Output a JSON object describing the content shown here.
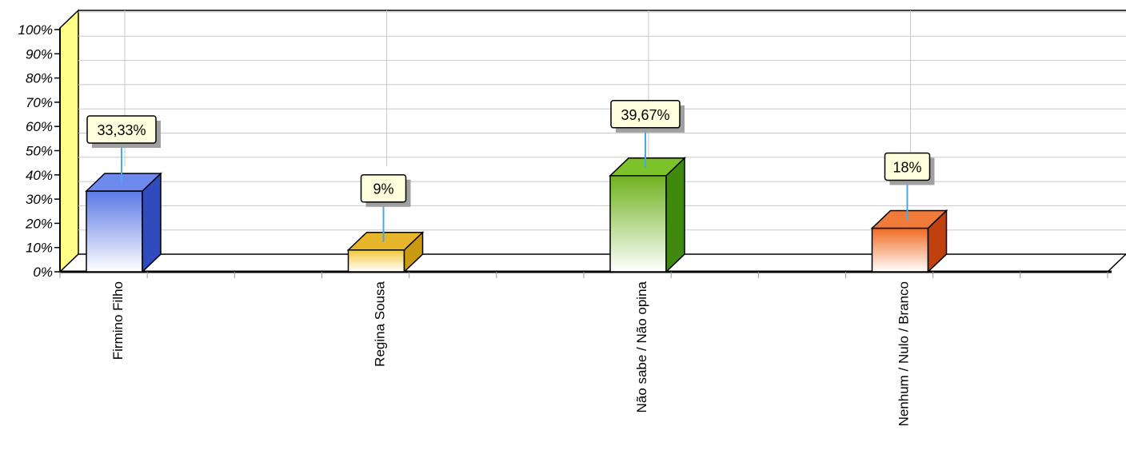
{
  "chart_data": {
    "type": "bar",
    "categories": [
      "Firmino Filho",
      "Regina Sousa",
      "Não sabe / Não opina",
      "Nenhum / Nulo / Branco"
    ],
    "values": [
      33.33,
      9,
      39.67,
      18
    ],
    "data_labels": [
      "33,33%",
      "9%",
      "39,67%",
      "18%"
    ],
    "y_ticks": [
      "0%",
      "10%",
      "20%",
      "30%",
      "40%",
      "50%",
      "60%",
      "70%",
      "80%",
      "90%",
      "100%"
    ],
    "ylim": [
      0,
      100
    ],
    "grid": true,
    "three_d": true,
    "bar_colors": [
      {
        "top": "#5b78e6",
        "bottom": "#ffffff",
        "side": "#2f4bbd",
        "cap": "#6f8aef"
      },
      {
        "top": "#f2c73a",
        "bottom": "#ffffff",
        "side": "#c99a12",
        "cap": "#e6b52a"
      },
      {
        "top": "#6fb21f",
        "bottom": "#ffffff",
        "side": "#3f8a0e",
        "cap": "#7cc22b"
      },
      {
        "top": "#f06a21",
        "bottom": "#ffffff",
        "side": "#c0410d",
        "cap": "#f07b38"
      }
    ],
    "wall_color": "#ffff88",
    "label_box_color": "#ffffdd",
    "leader_color": "#4aa8e8"
  }
}
